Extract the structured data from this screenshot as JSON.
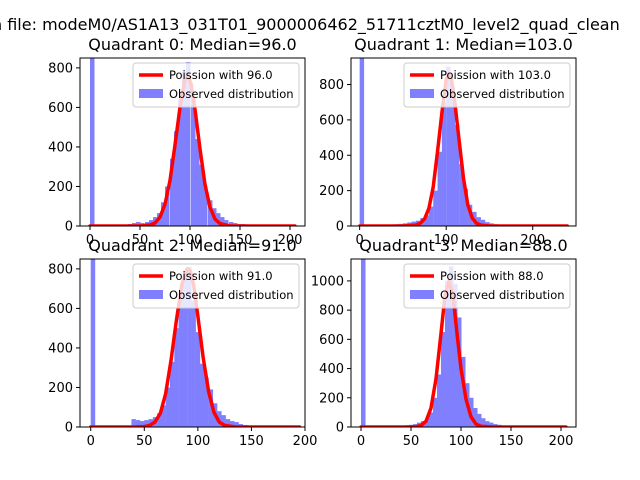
{
  "figure": {
    "suptitle": "n file: modeM0/AS1A13_031T01_9000006462_51711cztM0_level2_quad_clean"
  },
  "colors": {
    "hist": "#8080ff",
    "fit": "#ff0000",
    "axis": "#000000",
    "background": "#ffffff"
  },
  "chart_data": [
    {
      "type": "histogram",
      "title": "Quadrant 0: Median=96.0",
      "median": 96.0,
      "legend_position": "upper right",
      "legend": [
        "Poission with 96.0",
        "Observed distribution"
      ],
      "xlim": [
        -10,
        215
      ],
      "ylim": [
        0,
        850
      ],
      "xticks": [
        0,
        50,
        100,
        150,
        200
      ],
      "yticks": [
        0,
        200,
        400,
        600,
        800
      ],
      "bin_width": 4.2,
      "hist": {
        "x": [
          0,
          38,
          42,
          46,
          50,
          55,
          59,
          63,
          67,
          71,
          75,
          80,
          84,
          88,
          92,
          96,
          101,
          105,
          109,
          113,
          118,
          122,
          126,
          130,
          134,
          139,
          143,
          147,
          151,
          155,
          160,
          164,
          168
        ],
        "y": [
          850,
          10,
          15,
          20,
          15,
          20,
          30,
          45,
          65,
          120,
          200,
          340,
          480,
          640,
          780,
          830,
          650,
          440,
          310,
          200,
          130,
          90,
          65,
          45,
          30,
          20,
          15,
          10,
          10,
          8,
          6,
          6,
          4
        ]
      },
      "fit": {
        "x": [
          0,
          40,
          50,
          60,
          65,
          70,
          75,
          80,
          85,
          90,
          95,
          98,
          101,
          105,
          110,
          115,
          120,
          125,
          130,
          140,
          150,
          205
        ],
        "y": [
          0,
          0,
          0,
          5,
          15,
          45,
          110,
          230,
          410,
          600,
          745,
          760,
          720,
          590,
          390,
          210,
          95,
          35,
          12,
          0,
          0,
          0
        ]
      }
    },
    {
      "type": "histogram",
      "title": "Quadrant 1: Median=103.0",
      "median": 103.0,
      "legend_position": "upper right",
      "legend": [
        "Poission with 103.0",
        "Observed distribution"
      ],
      "xlim": [
        -10,
        250
      ],
      "ylim": [
        0,
        950
      ],
      "xticks": [
        0,
        100,
        200
      ],
      "yticks": [
        0,
        200,
        400,
        600,
        800
      ],
      "bin_width": 4.8,
      "hist": {
        "x": [
          0,
          40,
          45,
          50,
          55,
          60,
          65,
          70,
          75,
          80,
          85,
          90,
          95,
          100,
          105,
          110,
          115,
          120,
          125,
          130,
          135,
          140,
          145,
          150,
          155,
          160,
          165,
          170
        ],
        "y": [
          950,
          10,
          12,
          15,
          20,
          25,
          30,
          45,
          60,
          110,
          200,
          420,
          700,
          900,
          790,
          570,
          350,
          210,
          120,
          80,
          50,
          35,
          22,
          15,
          10,
          8,
          6,
          4
        ]
      },
      "fit": {
        "x": [
          0,
          50,
          65,
          70,
          75,
          80,
          85,
          90,
          95,
          100,
          103,
          106,
          110,
          115,
          120,
          125,
          130,
          135,
          140,
          150,
          240
        ],
        "y": [
          0,
          0,
          5,
          15,
          40,
          100,
          220,
          420,
          640,
          830,
          860,
          830,
          700,
          480,
          270,
          120,
          45,
          15,
          5,
          0,
          0
        ]
      }
    },
    {
      "type": "histogram",
      "title": "Quadrant 2: Median=91.0",
      "median": 91.0,
      "legend_position": "upper right",
      "legend": [
        "Poission with 91.0",
        "Observed distribution"
      ],
      "xlim": [
        -10,
        200
      ],
      "ylim": [
        0,
        850
      ],
      "xticks": [
        0,
        50,
        100,
        150,
        200
      ],
      "yticks": [
        0,
        200,
        400,
        600,
        800
      ],
      "bin_width": 3.9,
      "hist": {
        "x": [
          0,
          38,
          42,
          46,
          50,
          54,
          58,
          62,
          66,
          70,
          74,
          78,
          82,
          86,
          90,
          94,
          98,
          102,
          106,
          110,
          114,
          118,
          122,
          126,
          130,
          134,
          138,
          142,
          146,
          150,
          154
        ],
        "y": [
          850,
          40,
          35,
          30,
          35,
          40,
          50,
          70,
          110,
          200,
          330,
          500,
          680,
          790,
          810,
          640,
          480,
          320,
          250,
          190,
          120,
          80,
          60,
          40,
          30,
          25,
          15,
          10,
          8,
          6,
          4
        ]
      },
      "fit": {
        "x": [
          0,
          40,
          50,
          55,
          60,
          65,
          70,
          75,
          80,
          85,
          90,
          93,
          96,
          100,
          105,
          110,
          115,
          120,
          125,
          135,
          195
        ],
        "y": [
          0,
          0,
          2,
          8,
          25,
          70,
          170,
          340,
          540,
          720,
          800,
          790,
          720,
          560,
          350,
          180,
          75,
          25,
          8,
          0,
          0
        ]
      }
    },
    {
      "type": "histogram",
      "title": "Quadrant 3: Median=88.0",
      "median": 88.0,
      "legend_position": "upper right",
      "legend": [
        "Poission with 88.0",
        "Observed distribution"
      ],
      "xlim": [
        -10,
        215
      ],
      "ylim": [
        0,
        1150
      ],
      "xticks": [
        0,
        50,
        100,
        150,
        200
      ],
      "yticks": [
        0,
        200,
        400,
        600,
        800,
        1000
      ],
      "bin_width": 4.2,
      "hist": {
        "x": [
          0,
          40,
          44,
          48,
          52,
          56,
          60,
          64,
          68,
          72,
          76,
          80,
          84,
          88,
          92,
          96,
          100,
          104,
          108,
          112,
          116,
          120,
          124,
          128,
          132,
          136,
          140,
          144,
          150,
          160
        ],
        "y": [
          1150,
          10,
          12,
          15,
          20,
          30,
          40,
          60,
          100,
          200,
          360,
          650,
          1000,
          1100,
          980,
          750,
          480,
          300,
          200,
          130,
          90,
          60,
          40,
          30,
          20,
          15,
          10,
          8,
          6,
          4
        ]
      },
      "fit": {
        "x": [
          0,
          45,
          55,
          60,
          65,
          70,
          75,
          80,
          84,
          88,
          92,
          96,
          100,
          105,
          110,
          115,
          120,
          130,
          205
        ],
        "y": [
          0,
          0,
          2,
          10,
          40,
          130,
          330,
          640,
          900,
          1000,
          900,
          640,
          400,
          190,
          70,
          20,
          5,
          0,
          0
        ]
      }
    }
  ]
}
